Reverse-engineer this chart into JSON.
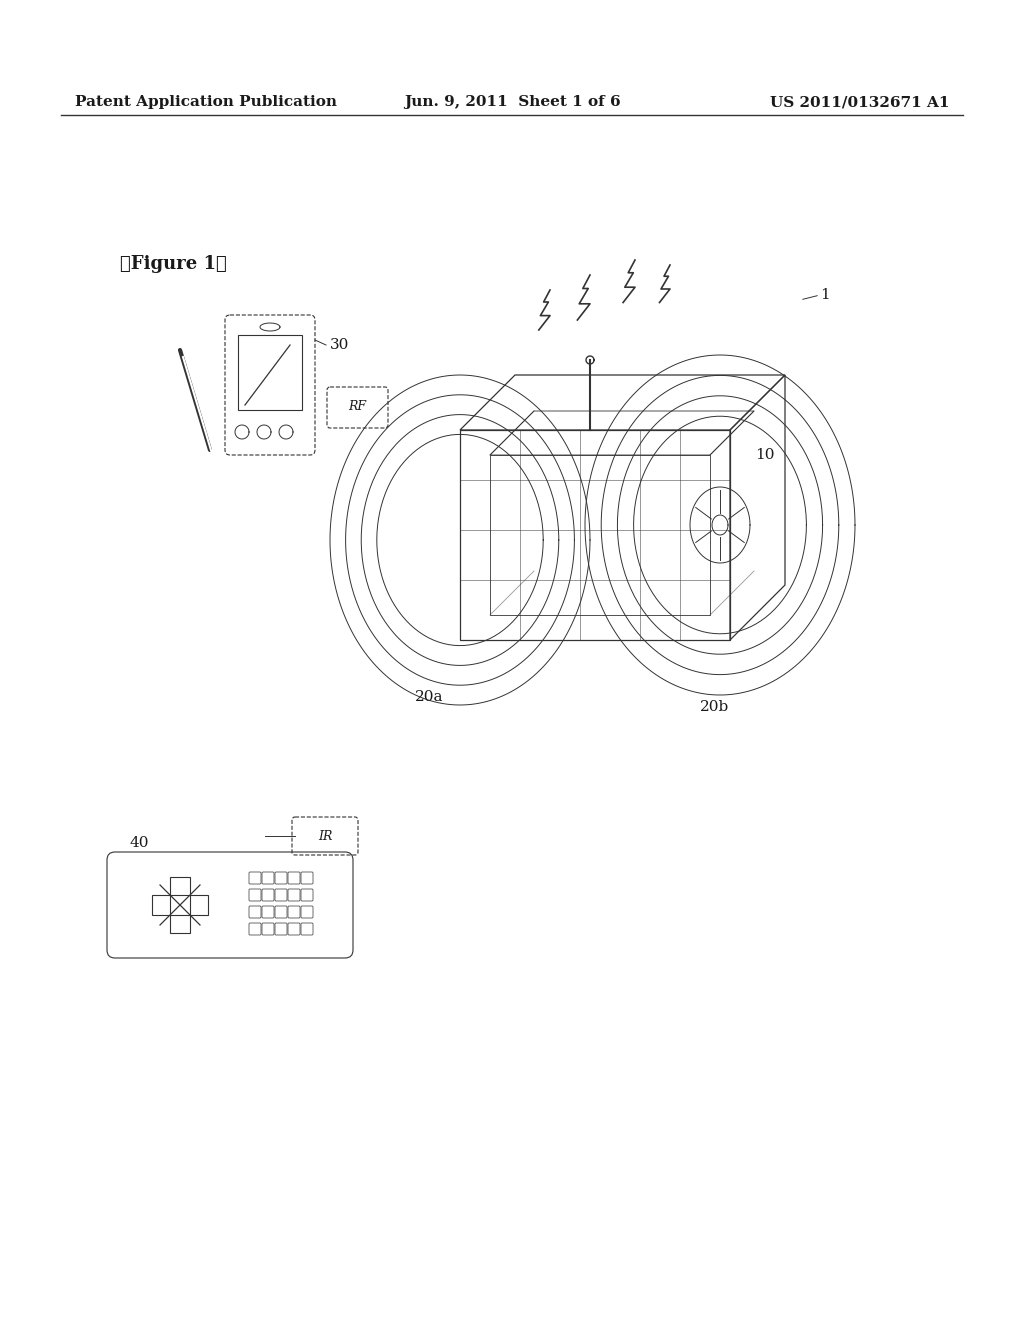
{
  "bg_color": "#ffffff",
  "header_left": "Patent Application Publication",
  "header_center": "Jun. 9, 2011  Sheet 1 of 6",
  "header_right": "US 2011/0132671 A1",
  "figure_label": "【Figure 1】",
  "label_1": "1",
  "label_10": "10",
  "label_20a": "20a",
  "label_20b": "20b",
  "label_30": "30",
  "label_40": "40",
  "label_RF1": "RF",
  "label_IR": "IR",
  "text_color": "#1a1a1a",
  "line_color": "#333333",
  "header_fontsize": 11,
  "figure_label_fontsize": 13
}
